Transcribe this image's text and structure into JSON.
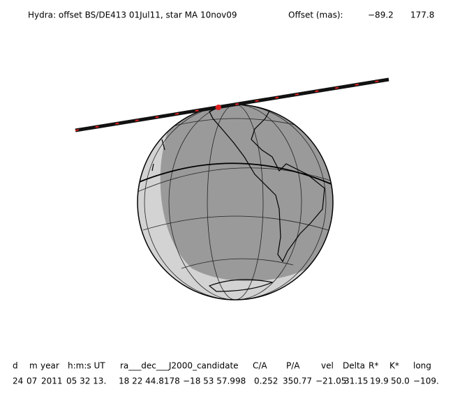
{
  "header": {
    "title": "Hydra: offset BS/DE413 01Jul11, star MA 10nov09",
    "offset_label": "Offset (mas):",
    "offset_values": [
      "−89.2",
      "177.8"
    ]
  },
  "table": {
    "columns": [
      "d",
      "m",
      "year",
      "h:m:s UT",
      "ra___dec___J2000_candidate",
      "C/A",
      "P/A",
      "vel",
      "Delta",
      "R*",
      "K*",
      "long"
    ],
    "row": [
      "24",
      "07",
      "2011",
      "05 32 13.",
      "18 22 44.8178",
      "−18 53 57.998",
      "0.252",
      "350.77",
      "−21.05",
      "31.15",
      "19.9",
      "50.0",
      "−109."
    ]
  }
}
